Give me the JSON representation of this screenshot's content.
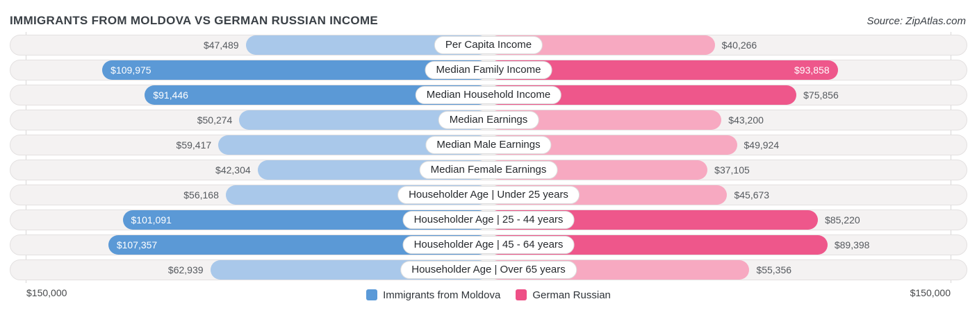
{
  "header": {
    "title": "IMMIGRANTS FROM MOLDOVA VS GERMAN RUSSIAN INCOME",
    "source": "Source: ZipAtlas.com"
  },
  "axis": {
    "left_label": "$150,000",
    "right_label": "$150,000"
  },
  "legend": {
    "items": [
      {
        "name": "moldova",
        "label": "Immigrants from Moldova",
        "color": "#5b9ad8"
      },
      {
        "name": "german-russian",
        "label": "German Russian",
        "color": "#ee4f86"
      }
    ]
  },
  "colors": {
    "moldova_dark": "#5b99d6",
    "moldova_light": "#a9c8ea",
    "german_dark": "#ee578b",
    "german_light": "#f7a9c1"
  },
  "chart_data": {
    "type": "bar",
    "orientation": "diverging-horizontal",
    "axis_max": 150000,
    "axis_max_label": "$150,000",
    "categories": [
      "Per Capita Income",
      "Median Family Income",
      "Median Household Income",
      "Median Earnings",
      "Median Male Earnings",
      "Median Female Earnings",
      "Householder Age | Under 25 years",
      "Householder Age | 25 - 44 years",
      "Householder Age | 45 - 64 years",
      "Householder Age | Over 65 years"
    ],
    "series": [
      {
        "name": "Immigrants from Moldova",
        "side": "left",
        "values": [
          47489,
          109975,
          91446,
          50274,
          59417,
          42304,
          56168,
          101091,
          107357,
          62939
        ],
        "value_labels": [
          "$47,489",
          "$109,975",
          "$91,446",
          "$50,274",
          "$59,417",
          "$42,304",
          "$56,168",
          "$101,091",
          "$107,357",
          "$62,939"
        ]
      },
      {
        "name": "German Russian",
        "side": "right",
        "values": [
          40266,
          93858,
          75856,
          43200,
          49924,
          37105,
          45673,
          85220,
          89398,
          55356
        ],
        "value_labels": [
          "$40,266",
          "$93,858",
          "$75,856",
          "$43,200",
          "$49,924",
          "$37,105",
          "$45,673",
          "$85,220",
          "$89,398",
          "$55,356"
        ]
      }
    ]
  }
}
